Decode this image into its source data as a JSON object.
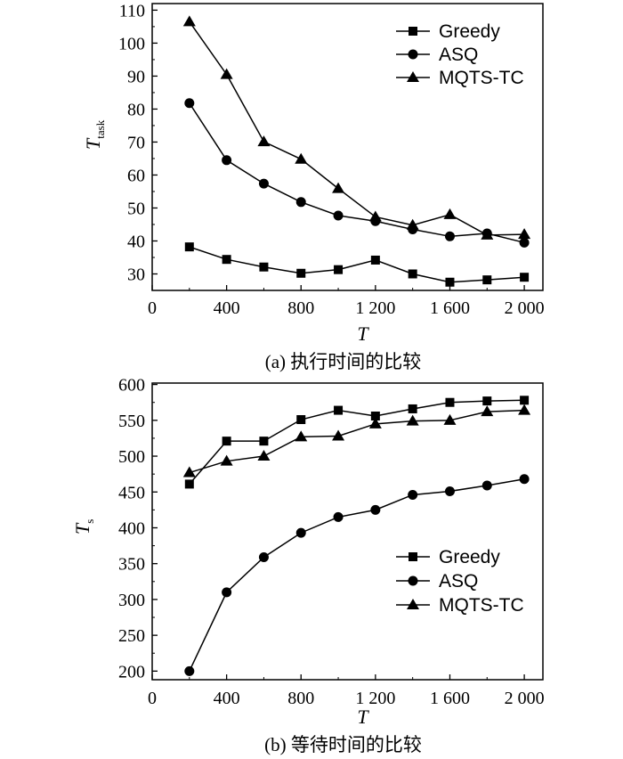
{
  "chart_data": [
    {
      "type": "line",
      "caption": "(a) 执行时间的比较",
      "xlabel": "T",
      "ylabel": {
        "main": "T",
        "sub": "task"
      },
      "xlim": [
        0,
        2100
      ],
      "ylim": [
        25,
        112
      ],
      "xticks": [
        0,
        400,
        800,
        1200,
        1600,
        2000
      ],
      "xtick_labels": [
        "0",
        "400",
        "800",
        "1 200",
        "1 600",
        "2 000"
      ],
      "yticks": [
        30,
        40,
        50,
        60,
        70,
        80,
        90,
        100,
        110
      ],
      "ytick_labels": [
        "30",
        "40",
        "50",
        "60",
        "70",
        "80",
        "90",
        "100",
        "110"
      ],
      "legend_position": "top-right",
      "x": [
        200,
        400,
        600,
        800,
        1000,
        1200,
        1400,
        1600,
        1800,
        2000
      ],
      "series": [
        {
          "name": "Greedy",
          "marker": "square",
          "values": [
            38.2,
            34.4,
            32.1,
            30.2,
            31.3,
            34.2,
            30.0,
            27.5,
            28.2,
            29.0
          ]
        },
        {
          "name": "ASQ",
          "marker": "circle",
          "values": [
            81.8,
            64.5,
            57.4,
            51.8,
            47.7,
            46.0,
            43.5,
            41.4,
            42.3,
            39.5
          ]
        },
        {
          "name": "MQTS-TC",
          "marker": "triangle",
          "values": [
            106.5,
            90.5,
            70.1,
            64.8,
            55.9,
            47.3,
            44.8,
            48.0,
            41.8,
            42.0
          ]
        }
      ]
    },
    {
      "type": "line",
      "caption": "(b) 等待时间的比较",
      "xlabel": "T",
      "ylabel": {
        "main": "T",
        "sub": "s"
      },
      "xlim": [
        0,
        2100
      ],
      "ylim": [
        188,
        602
      ],
      "xticks": [
        0,
        400,
        800,
        1200,
        1600,
        2000
      ],
      "xtick_labels": [
        "0",
        "400",
        "800",
        "1 200",
        "1 600",
        "2 000"
      ],
      "yticks": [
        200,
        250,
        300,
        350,
        400,
        450,
        500,
        550,
        600
      ],
      "ytick_labels": [
        "200",
        "250",
        "300",
        "350",
        "400",
        "450",
        "500",
        "550",
        "600"
      ],
      "legend_position": "lower-right",
      "x": [
        200,
        400,
        600,
        800,
        1000,
        1200,
        1400,
        1600,
        1800,
        2000
      ],
      "series": [
        {
          "name": "Greedy",
          "marker": "square",
          "values": [
            461,
            521,
            521,
            551,
            564,
            556,
            566,
            575,
            577,
            578
          ]
        },
        {
          "name": "ASQ",
          "marker": "circle",
          "values": [
            200,
            310,
            359,
            393,
            415,
            425,
            446,
            451,
            459,
            468
          ]
        },
        {
          "name": "MQTS-TC",
          "marker": "triangle",
          "values": [
            477,
            493,
            500,
            527,
            528,
            545,
            549,
            550,
            562,
            564
          ]
        }
      ]
    }
  ]
}
